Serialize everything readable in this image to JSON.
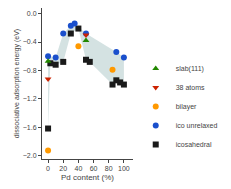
{
  "chart_data": {
    "type": "scatter",
    "xlabel": "Pd content (%)",
    "ylabel": "dissociative adsorption energy (eV)",
    "xlim": [
      -8,
      112
    ],
    "ylim": [
      -2.05,
      0.08
    ],
    "xticks": [
      0,
      20,
      40,
      60,
      80,
      100
    ],
    "yticks": [
      {
        "value": 0.0,
        "label": "0.0"
      },
      {
        "value": -0.4,
        "label": "−0.4"
      },
      {
        "value": -0.8,
        "label": "−0.8"
      },
      {
        "value": -1.2,
        "label": "−1.2"
      },
      {
        "value": -1.6,
        "label": "−1.6"
      },
      {
        "value": -2.0,
        "label": "−2.0"
      }
    ],
    "grid": false,
    "legend": "lower right",
    "series": [
      {
        "name": "icosahedral",
        "color": "#1a1a1a",
        "marker": "square",
        "x": [
          0,
          3,
          10,
          20,
          30,
          40,
          50,
          55,
          85,
          90,
          95,
          100
        ],
        "values": [
          -1.62,
          -0.7,
          -0.72,
          -0.68,
          -0.28,
          -0.21,
          -0.65,
          -0.68,
          -1.0,
          -0.94,
          -0.97,
          -1.0
        ]
      },
      {
        "name": "ico unrelaxed",
        "color": "#1a4fcc",
        "marker": "circle",
        "x": [
          0,
          10,
          20,
          30,
          35,
          50,
          90,
          100
        ],
        "values": [
          -0.6,
          -0.62,
          -0.28,
          -0.17,
          -0.14,
          -0.28,
          -0.54,
          -0.62
        ]
      },
      {
        "name": "bilayer",
        "color": "#ff9900",
        "marker": "circle",
        "x": [
          0,
          40,
          85
        ],
        "values": [
          -1.93,
          -0.46,
          -0.79
        ]
      },
      {
        "name": "38 atoms",
        "color": "#cc2200",
        "marker": "triangle-down",
        "x": [
          0,
          50
        ],
        "values": [
          -0.92,
          -0.3
        ]
      },
      {
        "name": "slab(111)",
        "color": "#228800",
        "marker": "triangle-up",
        "x": [
          0,
          50
        ],
        "values": [
          -0.67,
          -0.38
        ]
      }
    ]
  }
}
